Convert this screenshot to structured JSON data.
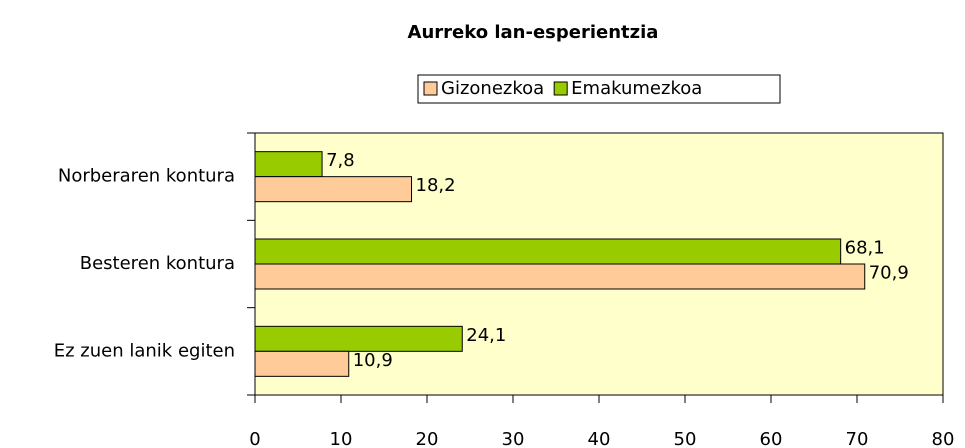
{
  "chart_data": {
    "type": "hbar",
    "title": "Aurreko lan-esperientzia",
    "categories": [
      "Norberaren kontura",
      "Besteren kontura",
      "Ez zuen lanik egiten"
    ],
    "series": [
      {
        "name": "Gizonezkoa",
        "color": "#ffcc99",
        "values": [
          18.2,
          70.9,
          10.9
        ],
        "value_labels": [
          "18,2",
          "70,9",
          "10,9"
        ]
      },
      {
        "name": "Emakumezkoa",
        "color": "#99cc00",
        "values": [
          7.8,
          68.1,
          24.1
        ],
        "value_labels": [
          "7,8",
          "68,1",
          "24,1"
        ]
      }
    ],
    "xlim": [
      0,
      80
    ],
    "xticks": [
      0,
      10,
      20,
      30,
      40,
      50,
      60,
      70,
      80
    ],
    "plot_background": "#ffffcc",
    "legend": "top"
  }
}
